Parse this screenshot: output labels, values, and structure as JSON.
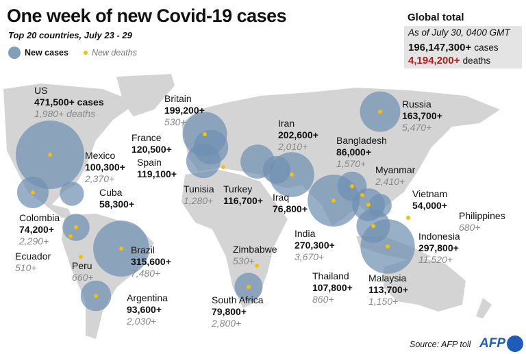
{
  "title": "One week of new Covid-19 cases",
  "subtitle": "Top 20 countries, July 23 - 29",
  "legend": {
    "cases": "New cases",
    "deaths": "New deaths"
  },
  "global": {
    "heading": "Global total",
    "date": "As of July 30, 0400 GMT",
    "cases": "196,147,300+",
    "cases_unit": "cases",
    "deaths": "4,194,200+",
    "deaths_unit": "deaths"
  },
  "colors": {
    "circle": "#6f90b2",
    "dot": "#f2c200",
    "land": "#d4d4d4",
    "deaths_total": "#b51e1e"
  },
  "countries": [
    {
      "name": "US",
      "cases": "471,500+ cases",
      "cases_value": 471500,
      "deaths": "1,980+ deaths"
    },
    {
      "name": "Mexico",
      "cases": "100,300+",
      "cases_value": 100300,
      "deaths": "2,370+"
    },
    {
      "name": "Cuba",
      "cases": "58,300+",
      "cases_value": 58300,
      "deaths": ""
    },
    {
      "name": "Colombia",
      "cases": "74,200+",
      "cases_value": 74200,
      "deaths": "2,290+"
    },
    {
      "name": "Ecuador",
      "cases": "",
      "cases_value": 0,
      "deaths": "510+"
    },
    {
      "name": "Peru",
      "cases": "",
      "cases_value": 0,
      "deaths": "660+"
    },
    {
      "name": "Brazil",
      "cases": "315,600+",
      "cases_value": 315600,
      "deaths": "7,480+"
    },
    {
      "name": "Argentina",
      "cases": "93,600+",
      "cases_value": 93600,
      "deaths": "2,030+"
    },
    {
      "name": "Britain",
      "cases": "199,200+",
      "cases_value": 199200,
      "deaths": "530+"
    },
    {
      "name": "France",
      "cases": "120,500+",
      "cases_value": 120500,
      "deaths": ""
    },
    {
      "name": "Spain",
      "cases": "119,100+",
      "cases_value": 119100,
      "deaths": ""
    },
    {
      "name": "Tunisia",
      "cases": "",
      "cases_value": 0,
      "deaths": "1,280+"
    },
    {
      "name": "Turkey",
      "cases": "116,700+",
      "cases_value": 116700,
      "deaths": ""
    },
    {
      "name": "Iraq",
      "cases": "76,800+",
      "cases_value": 76800,
      "deaths": ""
    },
    {
      "name": "Iran",
      "cases": "202,600+",
      "cases_value": 202600,
      "deaths": "2,010+"
    },
    {
      "name": "Russia",
      "cases": "163,700+",
      "cases_value": 163700,
      "deaths": "5,470+"
    },
    {
      "name": "Bangladesh",
      "cases": "86,000+",
      "cases_value": 86000,
      "deaths": "1,570+"
    },
    {
      "name": "Myanmar",
      "cases": "",
      "cases_value": 0,
      "deaths": "2,410+"
    },
    {
      "name": "India",
      "cases": "270,300+",
      "cases_value": 270300,
      "deaths": "3,670+"
    },
    {
      "name": "Vietnam",
      "cases": "54,000+",
      "cases_value": 54000,
      "deaths": ""
    },
    {
      "name": "Philippines",
      "cases": "",
      "cases_value": 0,
      "deaths": "680+"
    },
    {
      "name": "Indonesia",
      "cases": "297,800+",
      "cases_value": 297800,
      "deaths": "11,520+"
    },
    {
      "name": "Thailand",
      "cases": "107,800+",
      "cases_value": 107800,
      "deaths": "860+"
    },
    {
      "name": "Malaysia",
      "cases": "113,700+",
      "cases_value": 113700,
      "deaths": "1,150+"
    },
    {
      "name": "Zimbabwe",
      "cases": "",
      "cases_value": 0,
      "deaths": "530+"
    },
    {
      "name": "South Africa",
      "cases": "79,800+",
      "cases_value": 79800,
      "deaths": "2,800+"
    }
  ],
  "source": "Source: AFP toll",
  "logo": "AFP"
}
